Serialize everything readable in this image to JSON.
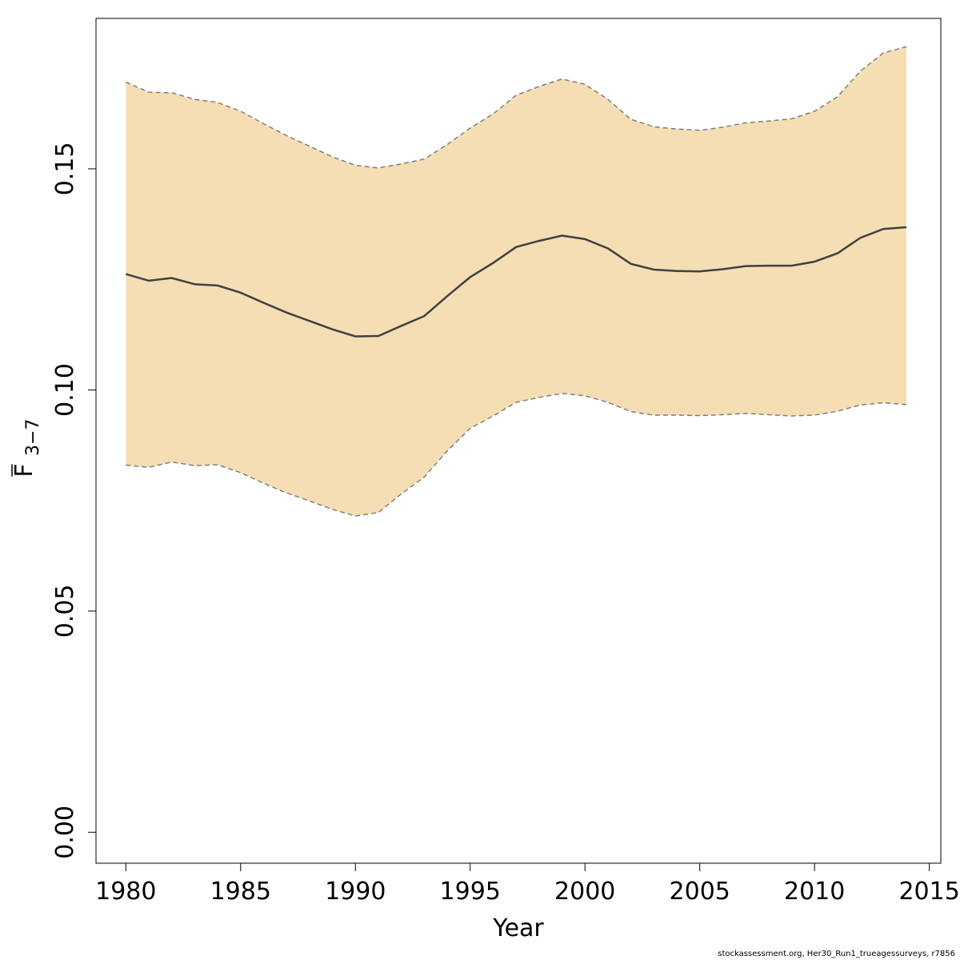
{
  "colors": {
    "band_fill": "#F5DEB3",
    "band_border": "#7F7F7F",
    "line": "#404040",
    "axis": "#000000"
  },
  "footer_text": "stockassessment.org, Her30_Run1_trueagessurveys, r7856",
  "chart_data": {
    "type": "line",
    "xlabel": "Year",
    "ylabel": {
      "base": "F",
      "subscript": "3−7",
      "overline": true
    },
    "xlim": [
      1978.7,
      2015.5
    ],
    "ylim": [
      -0.007,
      0.184
    ],
    "x_ticks": [
      1980,
      1985,
      1990,
      1995,
      2000,
      2005,
      2010,
      2015
    ],
    "x_tick_labels": [
      "1980",
      "1985",
      "1990",
      "1995",
      "2000",
      "2005",
      "2010",
      "2015"
    ],
    "y_ticks": [
      0.0,
      0.05,
      0.1,
      0.15
    ],
    "y_tick_labels": [
      "0.00",
      "0.05",
      "0.10",
      "0.15"
    ],
    "x": [
      1980,
      1981,
      1982,
      1983,
      1984,
      1985,
      1986,
      1987,
      1988,
      1989,
      1990,
      1991,
      1992,
      1993,
      1994,
      1995,
      1996,
      1997,
      1998,
      1999,
      2000,
      2001,
      2002,
      2003,
      2004,
      2005,
      2006,
      2007,
      2008,
      2009,
      2010,
      2011,
      2012,
      2013,
      2014
    ],
    "series": [
      {
        "role": "estimate",
        "values": [
          0.1262,
          0.1247,
          0.1253,
          0.1239,
          0.1236,
          0.122,
          0.1197,
          0.1175,
          0.1156,
          0.1137,
          0.1121,
          0.1122,
          0.1145,
          0.1167,
          0.1212,
          0.1255,
          0.1287,
          0.1323,
          0.1337,
          0.1349,
          0.1341,
          0.132,
          0.1285,
          0.1272,
          0.1269,
          0.1268,
          0.1273,
          0.128,
          0.1281,
          0.1281,
          0.129,
          0.1309,
          0.1344,
          0.1364,
          0.1368
        ]
      },
      {
        "role": "upper",
        "values": [
          0.1696,
          0.1673,
          0.1672,
          0.1657,
          0.165,
          0.163,
          0.1602,
          0.1575,
          0.1551,
          0.1527,
          0.1508,
          0.1502,
          0.1511,
          0.1522,
          0.1555,
          0.1592,
          0.1624,
          0.1666,
          0.1686,
          0.1703,
          0.1691,
          0.1657,
          0.1612,
          0.1595,
          0.159,
          0.1587,
          0.1594,
          0.1604,
          0.1608,
          0.1613,
          0.163,
          0.1663,
          0.1721,
          0.1762,
          0.1776
        ]
      },
      {
        "role": "lower",
        "values": [
          0.083,
          0.0825,
          0.0837,
          0.0829,
          0.0831,
          0.0813,
          0.0789,
          0.0767,
          0.0749,
          0.073,
          0.0715,
          0.0723,
          0.0765,
          0.0803,
          0.0862,
          0.0913,
          0.0941,
          0.0972,
          0.0983,
          0.0992,
          0.0987,
          0.0972,
          0.0951,
          0.0943,
          0.0943,
          0.0942,
          0.0944,
          0.0947,
          0.0944,
          0.0941,
          0.0943,
          0.0952,
          0.0966,
          0.0971,
          0.0967
        ]
      }
    ]
  }
}
